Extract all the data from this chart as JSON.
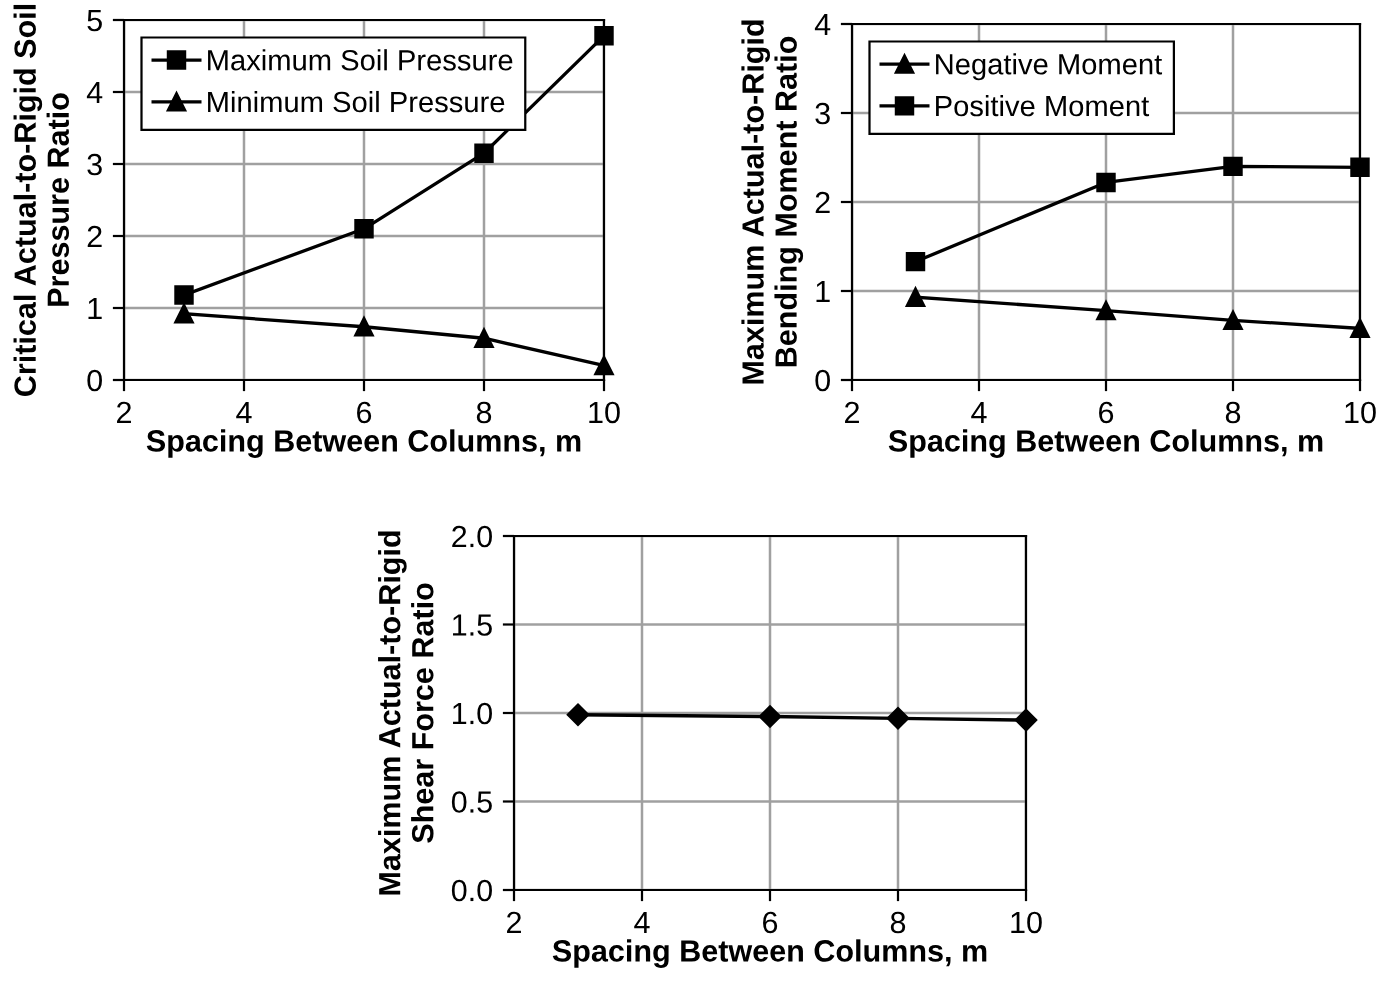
{
  "chart_data": [
    {
      "type": "line",
      "xlabel": "Spacing Between Columns, m",
      "ylabel": "Critical Actual-to-Rigid Soil\nPressure Ratio",
      "xlim": [
        2,
        10
      ],
      "xticks": [
        2,
        4,
        6,
        8,
        10
      ],
      "ylim": [
        0,
        5
      ],
      "yticks": [
        0,
        1,
        2,
        3,
        4,
        5
      ],
      "grid": true,
      "legend": "top left",
      "x": [
        3,
        6,
        8,
        10
      ],
      "series": [
        {
          "name": "Maximum Soil Pressure",
          "color": "#000000",
          "marker": "square",
          "values": [
            1.18,
            2.1,
            3.15,
            4.78
          ]
        },
        {
          "name": "Minimum Soil Pressure",
          "color": "#000000",
          "marker": "triangle",
          "values": [
            0.92,
            0.74,
            0.58,
            0.2
          ]
        }
      ]
    },
    {
      "type": "line",
      "xlabel": "Spacing Between Columns, m",
      "ylabel": "Maximum Actual-to-Rigid\nBending Moment Ratio",
      "xlim": [
        2,
        10
      ],
      "xticks": [
        2,
        4,
        6,
        8,
        10
      ],
      "ylim": [
        0,
        4
      ],
      "yticks": [
        0,
        1,
        2,
        3,
        4
      ],
      "grid": true,
      "legend": "top left",
      "x": [
        3,
        6,
        8,
        10
      ],
      "series": [
        {
          "name": "Negative Moment",
          "color": "#000000",
          "marker": "triangle",
          "values": [
            0.93,
            0.78,
            0.67,
            0.58
          ]
        },
        {
          "name": "Positive Moment",
          "color": "#000000",
          "marker": "square",
          "values": [
            1.33,
            2.22,
            2.4,
            2.39
          ]
        }
      ]
    },
    {
      "type": "line",
      "xlabel": "Spacing Between Columns, m",
      "ylabel": "Maximum Actual-to-Rigid\nShear Force Ratio",
      "xlim": [
        2,
        10
      ],
      "xticks": [
        2,
        4,
        6,
        8,
        10
      ],
      "ylim": [
        0,
        2
      ],
      "yticks": [
        {
          "value": 0,
          "label": "0.0"
        },
        {
          "value": 0.5,
          "label": "0.5"
        },
        {
          "value": 1,
          "label": "1.0"
        },
        {
          "value": 1.5,
          "label": "1.5"
        },
        {
          "value": 2,
          "label": "2.0"
        }
      ],
      "grid": true,
      "x": [
        3,
        6,
        8,
        10
      ],
      "series": [
        {
          "color": "#000000",
          "marker": "diamond",
          "values": [
            0.99,
            0.98,
            0.97,
            0.96
          ]
        }
      ]
    }
  ]
}
